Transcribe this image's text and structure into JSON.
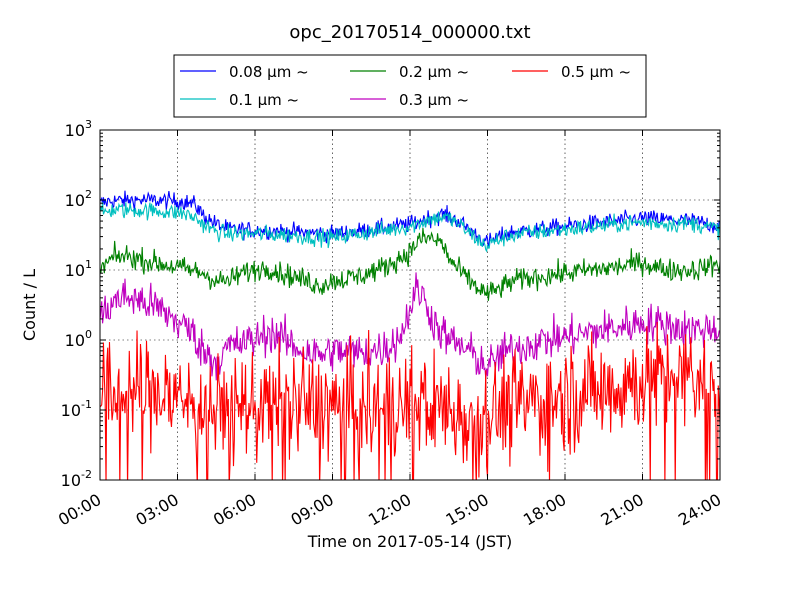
{
  "chart_data": {
    "type": "line",
    "title": "opc_20170514_000000.txt",
    "xlabel": "Time on 2017-05-14 (JST)",
    "ylabel": "Count / L",
    "x_unit": "hours",
    "xlim": [
      0,
      24
    ],
    "ylim": [
      0.01,
      1000
    ],
    "yscale": "log",
    "grid": true,
    "legend_position": "top-center",
    "x_tick_labels": [
      "00:00",
      "03:00",
      "06:00",
      "09:00",
      "12:00",
      "15:00",
      "18:00",
      "21:00",
      "24:00"
    ],
    "y_tick_labels": [
      {
        "base": "10",
        "exp": "-2"
      },
      {
        "base": "10",
        "exp": "-1"
      },
      {
        "base": "10",
        "exp": "0"
      },
      {
        "base": "10",
        "exp": "1"
      },
      {
        "base": "10",
        "exp": "2"
      },
      {
        "base": "10",
        "exp": "3"
      }
    ],
    "series": [
      {
        "name": "0.08 µm ~",
        "color": "#0000ff",
        "noise": 0.06,
        "points": [
          [
            0,
            90
          ],
          [
            0.5,
            98
          ],
          [
            1.5,
            100
          ],
          [
            2.5,
            98
          ],
          [
            3.2,
            96
          ],
          [
            3.7,
            85
          ],
          [
            4.0,
            60
          ],
          [
            4.5,
            45
          ],
          [
            5.0,
            38
          ],
          [
            6,
            37
          ],
          [
            7,
            36
          ],
          [
            8,
            34
          ],
          [
            9,
            33
          ],
          [
            10,
            36
          ],
          [
            11,
            40
          ],
          [
            12,
            45
          ],
          [
            12.7,
            55
          ],
          [
            13.3,
            62
          ],
          [
            13.8,
            52
          ],
          [
            14.3,
            38
          ],
          [
            14.8,
            27
          ],
          [
            15.0,
            24
          ],
          [
            15.3,
            28
          ],
          [
            16,
            35
          ],
          [
            17,
            38
          ],
          [
            18,
            42
          ],
          [
            19,
            46
          ],
          [
            20,
            50
          ],
          [
            21,
            55
          ],
          [
            22,
            52
          ],
          [
            23,
            50
          ],
          [
            24,
            42
          ]
        ]
      },
      {
        "name": "0.1 µm ~",
        "color": "#00bfbf",
        "noise": 0.06,
        "points": [
          [
            0,
            65
          ],
          [
            0.5,
            72
          ],
          [
            1.5,
            72
          ],
          [
            2.5,
            68
          ],
          [
            3.2,
            65
          ],
          [
            3.7,
            55
          ],
          [
            4.0,
            45
          ],
          [
            4.5,
            35
          ],
          [
            5.0,
            33
          ],
          [
            6,
            33
          ],
          [
            7,
            32
          ],
          [
            8,
            30
          ],
          [
            9,
            29
          ],
          [
            10,
            33
          ],
          [
            11,
            37
          ],
          [
            12,
            42
          ],
          [
            12.7,
            52
          ],
          [
            13.3,
            58
          ],
          [
            13.8,
            48
          ],
          [
            14.3,
            34
          ],
          [
            14.8,
            24
          ],
          [
            15.0,
            22
          ],
          [
            15.3,
            26
          ],
          [
            16,
            32
          ],
          [
            17,
            35
          ],
          [
            18,
            38
          ],
          [
            19,
            41
          ],
          [
            20,
            45
          ],
          [
            21,
            48
          ],
          [
            22,
            46
          ],
          [
            23,
            46
          ],
          [
            24,
            38
          ]
        ]
      },
      {
        "name": "0.2 µm ~",
        "color": "#008000",
        "noise": 0.08,
        "points": [
          [
            0,
            10
          ],
          [
            0.5,
            15
          ],
          [
            1.0,
            16
          ],
          [
            2,
            13
          ],
          [
            3,
            11
          ],
          [
            4,
            9
          ],
          [
            4.5,
            7
          ],
          [
            5,
            7
          ],
          [
            5.5,
            9
          ],
          [
            6,
            10
          ],
          [
            6.5,
            11
          ],
          [
            7,
            9
          ],
          [
            7.5,
            8
          ],
          [
            8,
            7
          ],
          [
            8.5,
            6
          ],
          [
            9,
            7
          ],
          [
            10,
            8
          ],
          [
            11,
            11
          ],
          [
            11.5,
            14
          ],
          [
            12,
            18
          ],
          [
            12.3,
            26
          ],
          [
            12.7,
            29
          ],
          [
            13.2,
            25
          ],
          [
            13.6,
            13
          ],
          [
            14,
            9
          ],
          [
            14.5,
            6
          ],
          [
            15,
            4.5
          ],
          [
            15.5,
            5.5
          ],
          [
            16,
            7
          ],
          [
            17,
            8
          ],
          [
            18,
            9
          ],
          [
            19,
            10
          ],
          [
            20,
            11
          ],
          [
            21,
            13
          ],
          [
            21.5,
            11
          ],
          [
            22,
            10
          ],
          [
            23,
            10
          ],
          [
            24,
            12.5
          ]
        ]
      },
      {
        "name": "0.3 µm ~",
        "color": "#bf00bf",
        "noise": 0.14,
        "points": [
          [
            0,
            2.0
          ],
          [
            0.5,
            3.5
          ],
          [
            1,
            4.2
          ],
          [
            2,
            3.2
          ],
          [
            2.5,
            2.5
          ],
          [
            3,
            1.8
          ],
          [
            3.5,
            1.4
          ],
          [
            4,
            0.7
          ],
          [
            4.5,
            0.5
          ],
          [
            5,
            0.8
          ],
          [
            6,
            1.0
          ],
          [
            6.5,
            1.3
          ],
          [
            7,
            1.1
          ],
          [
            7.5,
            0.8
          ],
          [
            8,
            0.7
          ],
          [
            8.5,
            0.6
          ],
          [
            9,
            0.7
          ],
          [
            10,
            0.65
          ],
          [
            11,
            0.75
          ],
          [
            11.5,
            1.0
          ],
          [
            11.8,
            1.6
          ],
          [
            12.0,
            3.0
          ],
          [
            12.3,
            5.5
          ],
          [
            12.6,
            3.5
          ],
          [
            13,
            1.6
          ],
          [
            13.5,
            1.0
          ],
          [
            14,
            0.8
          ],
          [
            14.5,
            0.6
          ],
          [
            15,
            0.4
          ],
          [
            15.5,
            0.6
          ],
          [
            16,
            0.75
          ],
          [
            17,
            0.95
          ],
          [
            18,
            1.1
          ],
          [
            19,
            1.3
          ],
          [
            20,
            1.5
          ],
          [
            21,
            1.8
          ],
          [
            22,
            1.6
          ],
          [
            23,
            1.4
          ],
          [
            24,
            1.5
          ]
        ]
      },
      {
        "name": "0.5 µm ~",
        "color": "#ff0000",
        "noise": 0.38,
        "points": [
          [
            0,
            0.12
          ],
          [
            0.5,
            0.16
          ],
          [
            1.5,
            0.19
          ],
          [
            2.5,
            0.17
          ],
          [
            3.5,
            0.13
          ],
          [
            4.5,
            0.1
          ],
          [
            5.5,
            0.11
          ],
          [
            6.5,
            0.13
          ],
          [
            7.5,
            0.12
          ],
          [
            8.5,
            0.12
          ],
          [
            9.5,
            0.11
          ],
          [
            10.5,
            0.1
          ],
          [
            11.5,
            0.11
          ],
          [
            12.5,
            0.13
          ],
          [
            13.5,
            0.1
          ],
          [
            14.5,
            0.08
          ],
          [
            15,
            0.09
          ],
          [
            16,
            0.12
          ],
          [
            17,
            0.13
          ],
          [
            18,
            0.15
          ],
          [
            19,
            0.18
          ],
          [
            20,
            0.22
          ],
          [
            21,
            0.27
          ],
          [
            22,
            0.28
          ],
          [
            23,
            0.25
          ],
          [
            24,
            0.27
          ]
        ]
      }
    ]
  }
}
